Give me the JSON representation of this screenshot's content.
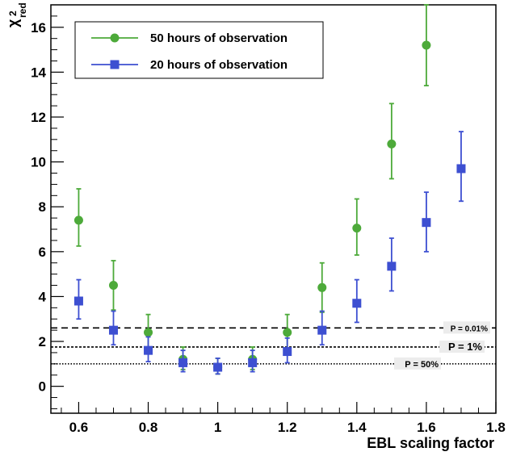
{
  "chart_data": {
    "type": "scatter",
    "xlabel": "EBL scaling factor",
    "ylabel": "χ²_red",
    "ylabel_main": "χ",
    "ylabel_sup": "2",
    "ylabel_sub": "red",
    "xlim": [
      0.52,
      1.8
    ],
    "ylim": [
      -1.2,
      17.0
    ],
    "x_ticks": [
      0.6,
      0.8,
      1,
      1.2,
      1.4,
      1.6,
      1.8
    ],
    "x_tick_labels": [
      "0.6",
      "0.8",
      "1",
      "1.2",
      "1.4",
      "1.6",
      "1.8"
    ],
    "y_ticks": [
      0,
      2,
      4,
      6,
      8,
      10,
      12,
      14,
      16
    ],
    "y_tick_labels": [
      "0",
      "2",
      "4",
      "6",
      "8",
      "10",
      "12",
      "14",
      "16"
    ],
    "grid": false,
    "legend_position": "top-left",
    "series": [
      {
        "name": "50 hours of observation",
        "color": "#4daa3a",
        "marker": "circle",
        "points": [
          {
            "x": 0.6,
            "y": 7.4,
            "lo": 6.25,
            "hi": 8.8
          },
          {
            "x": 0.7,
            "y": 4.5,
            "lo": 3.4,
            "hi": 5.6
          },
          {
            "x": 0.8,
            "y": 2.4,
            "lo": 1.7,
            "hi": 3.2
          },
          {
            "x": 0.9,
            "y": 1.2,
            "lo": 0.75,
            "hi": 1.75
          },
          {
            "x": 1.0,
            "y": 0.85,
            "lo": 0.55,
            "hi": 1.25
          },
          {
            "x": 1.1,
            "y": 1.2,
            "lo": 0.75,
            "hi": 1.75
          },
          {
            "x": 1.2,
            "y": 2.4,
            "lo": 1.7,
            "hi": 3.2
          },
          {
            "x": 1.3,
            "y": 4.4,
            "lo": 3.3,
            "hi": 5.5
          },
          {
            "x": 1.4,
            "y": 7.05,
            "lo": 5.85,
            "hi": 8.35
          },
          {
            "x": 1.5,
            "y": 10.8,
            "lo": 9.25,
            "hi": 12.6
          },
          {
            "x": 1.6,
            "y": 15.2,
            "lo": 13.4,
            "hi": 17.0
          }
        ]
      },
      {
        "name": "20 hours of observation",
        "color": "#3d4fd1",
        "marker": "square",
        "points": [
          {
            "x": 0.6,
            "y": 3.8,
            "lo": 3.0,
            "hi": 4.75
          },
          {
            "x": 0.7,
            "y": 2.5,
            "lo": 1.85,
            "hi": 3.35
          },
          {
            "x": 0.8,
            "y": 1.6,
            "lo": 1.1,
            "hi": 2.2
          },
          {
            "x": 0.9,
            "y": 1.05,
            "lo": 0.65,
            "hi": 1.6
          },
          {
            "x": 1.0,
            "y": 0.85,
            "lo": 0.55,
            "hi": 1.25
          },
          {
            "x": 1.1,
            "y": 1.05,
            "lo": 0.65,
            "hi": 1.6
          },
          {
            "x": 1.2,
            "y": 1.55,
            "lo": 1.05,
            "hi": 2.15
          },
          {
            "x": 1.3,
            "y": 2.5,
            "lo": 1.85,
            "hi": 3.35
          },
          {
            "x": 1.4,
            "y": 3.7,
            "lo": 2.85,
            "hi": 4.75
          },
          {
            "x": 1.5,
            "y": 5.35,
            "lo": 4.25,
            "hi": 6.6
          },
          {
            "x": 1.6,
            "y": 7.3,
            "lo": 6.0,
            "hi": 8.65
          },
          {
            "x": 1.7,
            "y": 9.7,
            "lo": 8.25,
            "hi": 11.35
          }
        ]
      }
    ],
    "reference_lines": [
      {
        "y": 2.6,
        "style": "dashed",
        "label": "P = 0.01%"
      },
      {
        "y": 1.75,
        "style": "densely-dotted",
        "label": "P = 1%"
      },
      {
        "y": 1.0,
        "style": "dotted",
        "label": "P = 50%"
      }
    ]
  }
}
